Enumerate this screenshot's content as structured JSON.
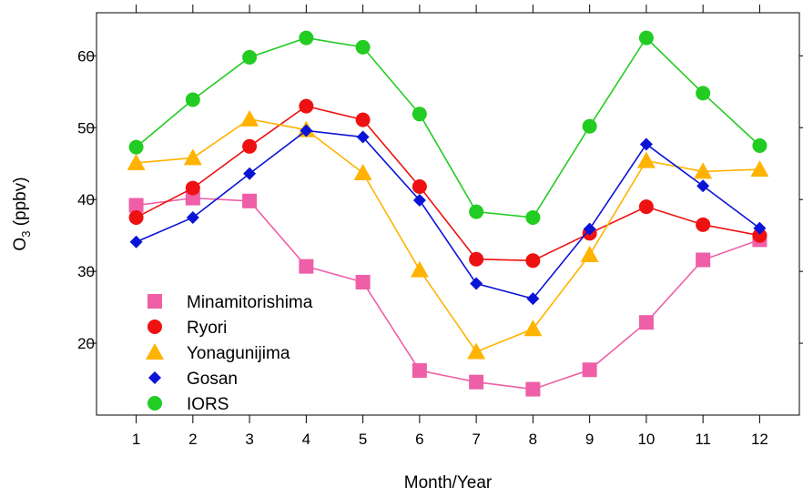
{
  "chart_data": {
    "type": "line",
    "xlabel": "Month/Year",
    "ylabel": "O",
    "ylabel_sub": "3",
    "ylabel_unit": " (ppbv)",
    "x": [
      1,
      2,
      3,
      4,
      5,
      6,
      7,
      8,
      9,
      10,
      11,
      12
    ],
    "xlim": [
      0.3,
      12.7
    ],
    "ylim": [
      10,
      66
    ],
    "yticks": [
      20,
      30,
      40,
      50,
      60
    ],
    "grid": false,
    "legend_position": "bottom-left",
    "series": [
      {
        "name": "Minamitorishima",
        "color": "#EE5FA7",
        "marker": "square",
        "values": [
          39.2,
          40.2,
          39.8,
          30.7,
          28.5,
          16.2,
          14.6,
          13.6,
          16.3,
          22.9,
          31.6,
          34.4
        ]
      },
      {
        "name": "Ryori",
        "color": "#EE1111",
        "marker": "circle",
        "values": [
          37.5,
          41.6,
          47.4,
          53.0,
          51.1,
          41.8,
          31.7,
          31.5,
          35.3,
          39.0,
          36.5,
          35.0
        ]
      },
      {
        "name": "Yonagunijima",
        "color": "#FFB300",
        "marker": "triangle",
        "values": [
          45.1,
          45.8,
          51.2,
          49.7,
          43.7,
          30.2,
          18.8,
          22.0,
          32.3,
          45.4,
          43.9,
          44.2
        ]
      },
      {
        "name": "Gosan",
        "color": "#0A14D6",
        "marker": "diamond",
        "values": [
          34.1,
          37.5,
          43.6,
          49.6,
          48.7,
          39.9,
          28.3,
          26.2,
          35.9,
          47.7,
          41.9,
          36.0
        ]
      },
      {
        "name": "IORS",
        "color": "#22CC22",
        "marker": "circle",
        "values": [
          47.3,
          53.9,
          59.8,
          62.5,
          61.2,
          51.9,
          38.3,
          37.5,
          50.2,
          62.5,
          54.8,
          47.5
        ]
      }
    ]
  }
}
